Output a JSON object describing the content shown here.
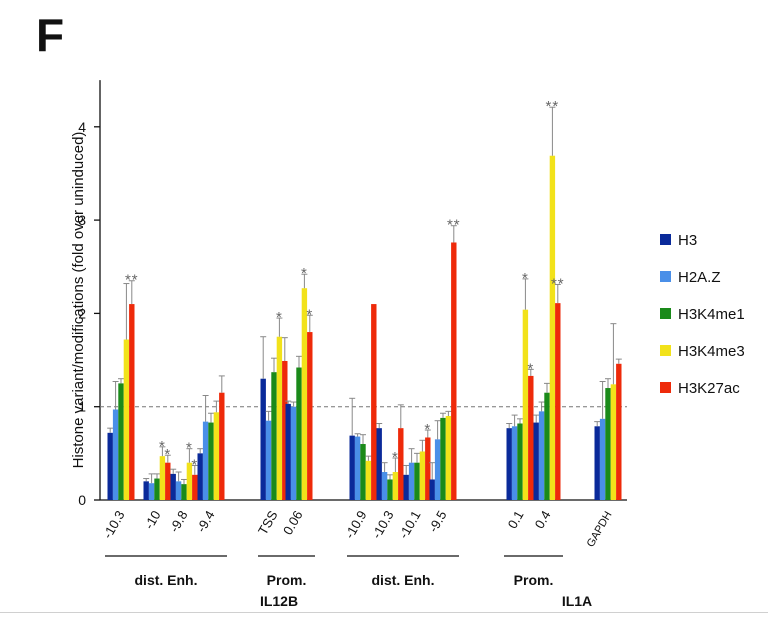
{
  "panel_label": "F",
  "chart_data": {
    "type": "bar",
    "ylabel": "Histone variant/modifications (fold over uninduced)",
    "ylim": [
      0,
      4.5
    ],
    "yticks": [
      0,
      1,
      2,
      3,
      4
    ],
    "reference_line": 1,
    "series": [
      {
        "name": "H3",
        "color": "#0a2a9a"
      },
      {
        "name": "H2A.Z",
        "color": "#4a8fe8"
      },
      {
        "name": "H3K4me1",
        "color": "#1a8a1a"
      },
      {
        "name": "H3K4me3",
        "color": "#f2e21a"
      },
      {
        "name": "H3K27ac",
        "color": "#ee2a0a"
      }
    ],
    "categories": [
      "-10.3",
      "-10",
      "-9.8",
      "-9.4",
      "TSS",
      "0.06",
      "-10.9",
      "-10.3",
      "-10.1",
      "-9.5",
      "0.1",
      "0.4",
      "GAPDH"
    ],
    "values": [
      [
        0.72,
        0.97,
        1.25,
        1.72,
        2.1
      ],
      [
        0.2,
        0.18,
        0.23,
        0.47,
        0.4
      ],
      [
        0.28,
        0.2,
        0.17,
        0.4,
        0.27
      ],
      [
        0.5,
        0.84,
        0.83,
        0.94,
        1.15
      ],
      [
        1.3,
        0.85,
        1.37,
        1.75,
        1.49
      ],
      [
        1.03,
        1.0,
        1.42,
        2.27,
        1.8
      ],
      [
        0.69,
        0.68,
        0.6,
        0.42,
        2.1
      ],
      [
        0.77,
        0.3,
        0.22,
        0.3,
        0.77
      ],
      [
        0.27,
        0.4,
        0.4,
        0.52,
        0.67
      ],
      [
        0.22,
        0.65,
        0.88,
        0.9,
        2.76
      ],
      [
        0.77,
        0.79,
        0.82,
        2.04,
        1.33
      ],
      [
        0.83,
        0.95,
        1.15,
        3.69,
        2.11
      ],
      [
        0.79,
        0.87,
        1.2,
        1.24,
        1.46
      ]
    ],
    "errors": [
      [
        0.05,
        0.3,
        0.05,
        0.6,
        0.25
      ],
      [
        0.03,
        0.1,
        0.05,
        0.1,
        0.08
      ],
      [
        0.05,
        0.1,
        0.05,
        0.15,
        0.1
      ],
      [
        0.05,
        0.28,
        0.1,
        0.12,
        0.18
      ],
      [
        0.45,
        0.1,
        0.15,
        0.2,
        0.25
      ],
      [
        0.03,
        0.05,
        0.12,
        0.15,
        0.18
      ],
      [
        0.4,
        0.03,
        0.1,
        0.05,
        0.0
      ],
      [
        0.05,
        0.1,
        0.05,
        0.15,
        0.25
      ],
      [
        0.1,
        0.15,
        0.1,
        0.12,
        0.08
      ],
      [
        0.18,
        0.2,
        0.05,
        0.05,
        0.18
      ],
      [
        0.05,
        0.12,
        0.05,
        0.33,
        0.07
      ],
      [
        0.08,
        0.1,
        0.1,
        0.52,
        0.2
      ],
      [
        0.05,
        0.4,
        0.1,
        0.65,
        0.05
      ]
    ],
    "significance": [
      {
        "group": 0,
        "series": 4,
        "label": "**"
      },
      {
        "group": 1,
        "series": 3,
        "label": "*"
      },
      {
        "group": 1,
        "series": 4,
        "label": "*"
      },
      {
        "group": 2,
        "series": 3,
        "label": "*"
      },
      {
        "group": 2,
        "series": 4,
        "label": "*"
      },
      {
        "group": 4,
        "series": 3,
        "label": "*"
      },
      {
        "group": 5,
        "series": 3,
        "label": "*"
      },
      {
        "group": 5,
        "series": 4,
        "label": "*"
      },
      {
        "group": 7,
        "series": 3,
        "label": "*"
      },
      {
        "group": 8,
        "series": 4,
        "label": "*"
      },
      {
        "group": 9,
        "series": 4,
        "label": "**"
      },
      {
        "group": 10,
        "series": 3,
        "label": "*"
      },
      {
        "group": 10,
        "series": 4,
        "label": "*"
      },
      {
        "group": 11,
        "series": 3,
        "label": "**"
      },
      {
        "group": 11,
        "series": 4,
        "label": "**"
      }
    ],
    "region_brackets": [
      {
        "label": "dist. Enh.",
        "from": 0,
        "to": 3
      },
      {
        "label": "Prom.",
        "from": 4,
        "to": 5
      },
      {
        "label": "dist. Enh.",
        "from": 6,
        "to": 9
      },
      {
        "label": "Prom.",
        "from": 10,
        "to": 11
      }
    ],
    "gene_labels": [
      {
        "label": "IL12B",
        "from": 0,
        "to": 5
      },
      {
        "label": "IL1A",
        "from": 6,
        "to": 11
      }
    ],
    "legend_position": "right"
  }
}
